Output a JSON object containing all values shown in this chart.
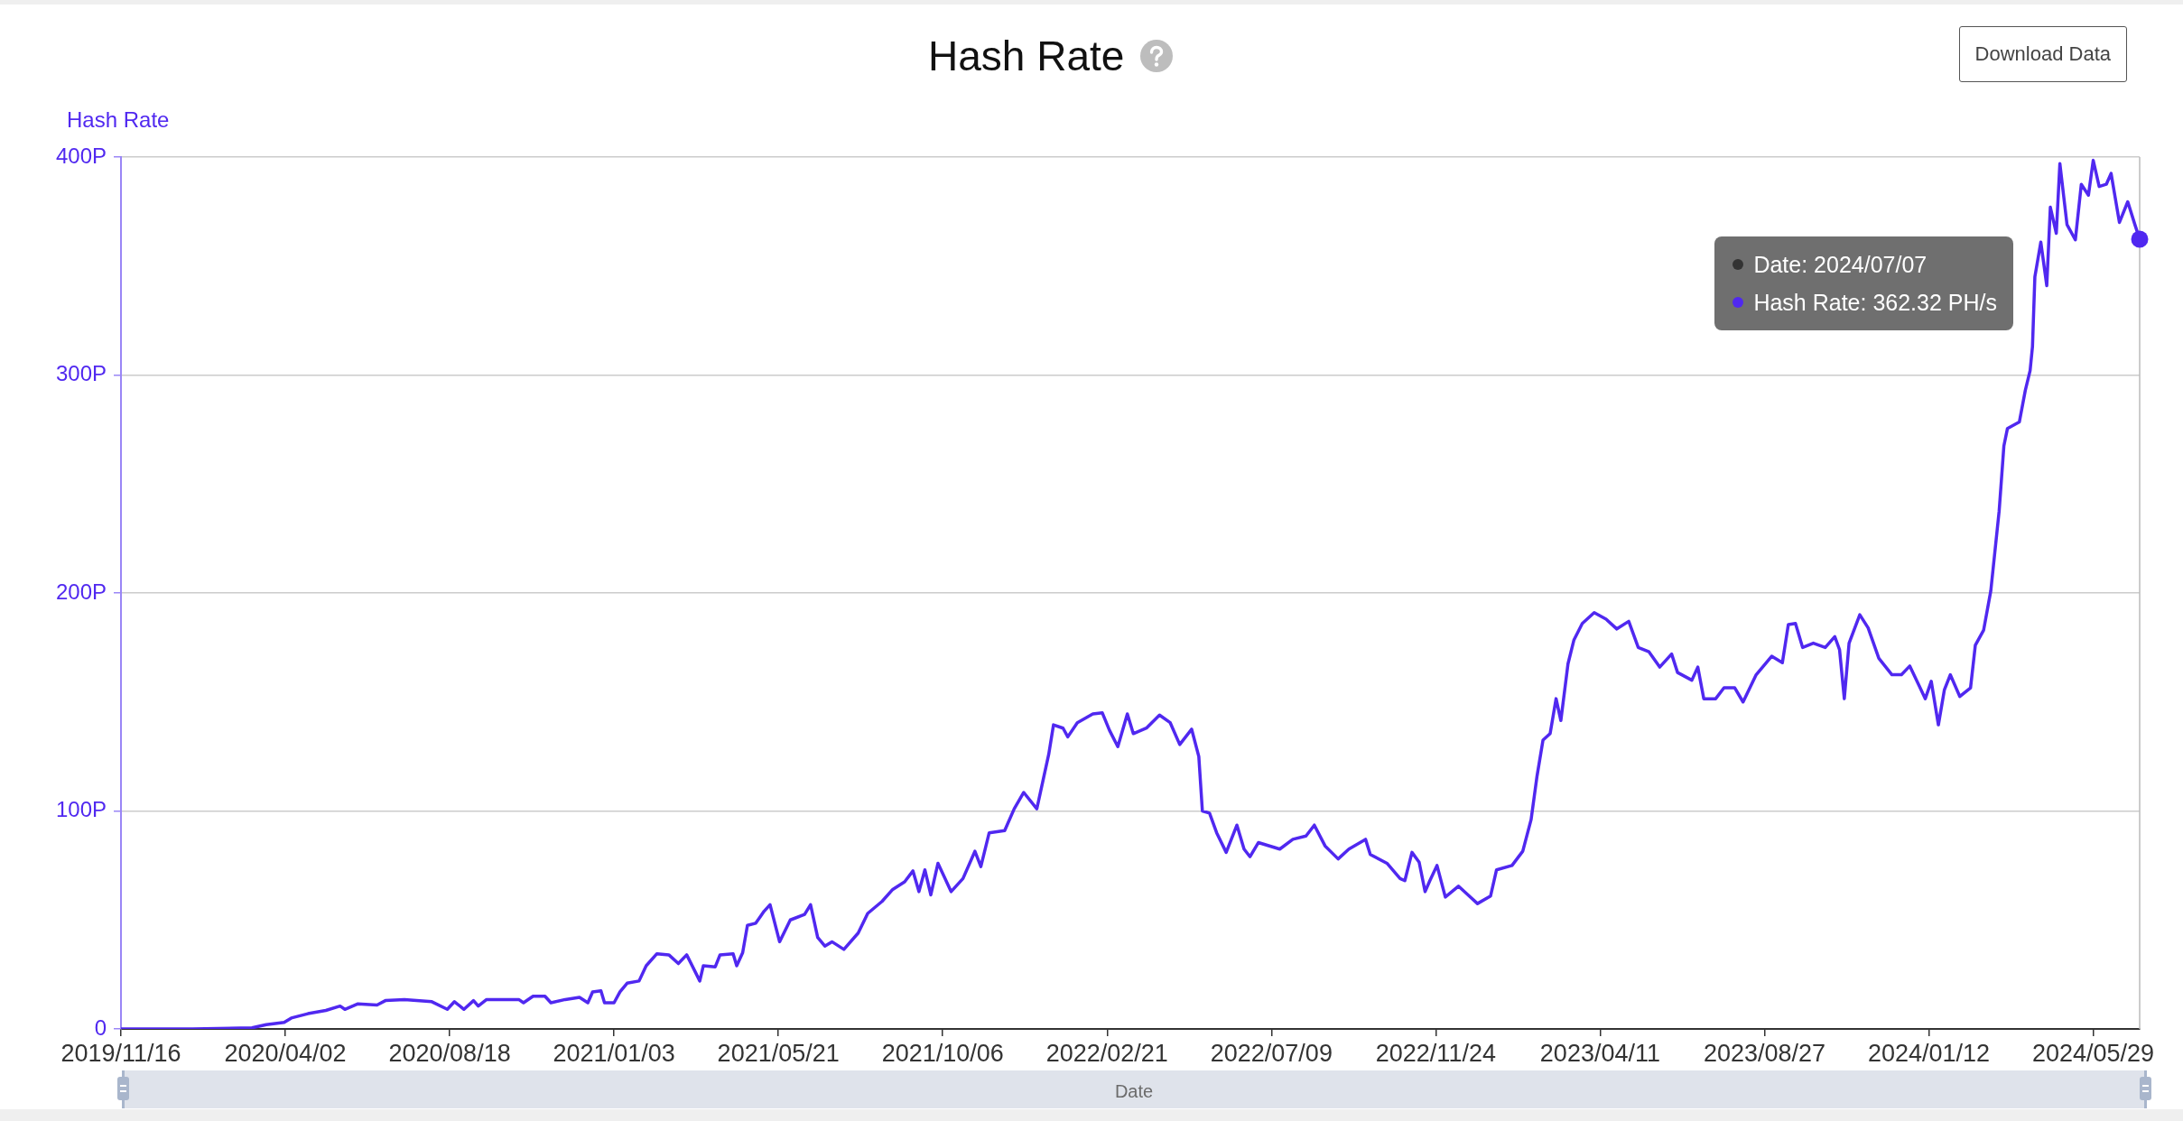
{
  "chart_data": {
    "type": "line",
    "title": "Hash Rate",
    "xlabel": "Date",
    "ylabel": "Hash Rate",
    "color": "#5028f0",
    "marker": "none",
    "grid": "y",
    "xlim": [
      "2019-11-16",
      "2024-07-07"
    ],
    "xticks": [
      {
        "value": "2019-11-16",
        "label": "2019/11/16"
      },
      {
        "value": "2020-04-02",
        "label": "2020/04/02"
      },
      {
        "value": "2020-08-18",
        "label": "2020/08/18"
      },
      {
        "value": "2021-01-03",
        "label": "2021/01/03"
      },
      {
        "value": "2021-05-21",
        "label": "2021/05/21"
      },
      {
        "value": "2021-10-06",
        "label": "2021/10/06"
      },
      {
        "value": "2022-02-21",
        "label": "2022/02/21"
      },
      {
        "value": "2022-07-09",
        "label": "2022/07/09"
      },
      {
        "value": "2022-11-24",
        "label": "2022/11/24"
      },
      {
        "value": "2023-04-11",
        "label": "2023/04/11"
      },
      {
        "value": "2023-08-27",
        "label": "2023/08/27"
      },
      {
        "value": "2024-01-12",
        "label": "2024/01/12"
      },
      {
        "value": "2024-05-29",
        "label": "2024/05/29"
      }
    ],
    "ylim": [
      0,
      400
    ],
    "yticks": [
      0,
      {
        "value": 100,
        "label": "100P"
      },
      {
        "value": 200,
        "label": "200P"
      },
      {
        "value": 300,
        "label": "300P"
      },
      {
        "value": 400,
        "label": "400P"
      }
    ],
    "x": [
      "2019-11-16",
      "2020-01-15",
      "2020-03-05",
      "2020-03-17",
      "2020-04-01",
      "2020-04-07",
      "2020-04-21",
      "2020-05-06",
      "2020-05-18",
      "2020-05-22",
      "2020-06-02",
      "2020-06-18",
      "2020-06-25",
      "2020-07-11",
      "2020-08-03",
      "2020-08-16",
      "2020-08-22",
      "2020-08-30",
      "2020-09-07",
      "2020-09-11",
      "2020-09-18",
      "2020-10-15",
      "2020-10-19",
      "2020-10-27",
      "2020-11-06",
      "2020-11-11",
      "2020-11-23",
      "2020-12-05",
      "2020-12-12",
      "2020-12-16",
      "2020-12-23",
      "2020-12-26",
      "2021-01-03",
      "2021-01-08",
      "2021-01-14",
      "2021-01-24",
      "2021-01-30",
      "2021-02-08",
      "2021-02-18",
      "2021-02-26",
      "2021-03-05",
      "2021-03-16",
      "2021-03-19",
      "2021-03-29",
      "2021-04-02",
      "2021-04-13",
      "2021-04-16",
      "2021-04-21",
      "2021-04-25",
      "2021-05-02",
      "2021-05-09",
      "2021-05-14",
      "2021-05-22",
      "2021-05-31",
      "2021-06-12",
      "2021-06-17",
      "2021-06-23",
      "2021-06-29",
      "2021-07-05",
      "2021-07-15",
      "2021-07-27",
      "2021-08-04",
      "2021-08-16",
      "2021-08-25",
      "2021-09-04",
      "2021-09-11",
      "2021-09-16",
      "2021-09-21",
      "2021-09-26",
      "2021-10-02",
      "2021-10-13",
      "2021-10-23",
      "2021-11-02",
      "2021-11-07",
      "2021-11-14",
      "2021-11-27",
      "2021-12-05",
      "2021-12-13",
      "2021-12-24",
      "2021-12-29",
      "2022-01-03",
      "2022-01-07",
      "2022-01-15",
      "2022-01-19",
      "2022-01-27",
      "2022-02-09",
      "2022-02-17",
      "2022-02-23",
      "2022-03-02",
      "2022-03-10",
      "2022-03-15",
      "2022-03-26",
      "2022-04-06",
      "2022-04-15",
      "2022-04-23",
      "2022-05-03",
      "2022-05-09",
      "2022-05-12",
      "2022-05-18",
      "2022-05-24",
      "2022-06-01",
      "2022-06-10",
      "2022-06-16",
      "2022-06-21",
      "2022-06-28",
      "2022-07-16",
      "2022-07-27",
      "2022-08-07",
      "2022-08-14",
      "2022-08-23",
      "2022-09-03",
      "2022-09-12",
      "2022-09-26",
      "2022-09-30",
      "2022-10-14",
      "2022-10-25",
      "2022-10-29",
      "2022-11-04",
      "2022-11-10",
      "2022-11-15",
      "2022-11-19",
      "2022-11-25",
      "2022-12-02",
      "2022-12-13",
      "2022-12-20",
      "2022-12-29",
      "2023-01-09",
      "2023-01-14",
      "2023-01-27",
      "2023-02-05",
      "2023-02-12",
      "2023-02-17",
      "2023-02-22",
      "2023-02-28",
      "2023-03-05",
      "2023-03-09",
      "2023-03-15",
      "2023-03-20",
      "2023-03-27",
      "2023-04-06",
      "2023-04-16",
      "2023-04-25",
      "2023-05-05",
      "2023-05-13",
      "2023-05-22",
      "2023-05-31",
      "2023-06-10",
      "2023-06-15",
      "2023-06-27",
      "2023-07-02",
      "2023-07-07",
      "2023-07-17",
      "2023-07-24",
      "2023-08-02",
      "2023-08-09",
      "2023-08-20",
      "2023-09-02",
      "2023-09-11",
      "2023-09-16",
      "2023-09-22",
      "2023-09-28",
      "2023-10-07",
      "2023-10-17",
      "2023-10-25",
      "2023-10-29",
      "2023-11-02",
      "2023-11-06",
      "2023-11-15",
      "2023-11-22",
      "2023-12-01",
      "2023-12-12",
      "2023-12-20",
      "2023-12-27",
      "2024-01-09",
      "2024-01-14",
      "2024-01-20",
      "2024-01-25",
      "2024-01-30",
      "2024-02-07",
      "2024-02-16",
      "2024-02-20",
      "2024-02-27",
      "2024-03-04",
      "2024-03-11",
      "2024-03-15",
      "2024-03-18",
      "2024-03-28",
      "2024-04-02",
      "2024-04-06",
      "2024-04-08",
      "2024-04-10",
      "2024-04-15",
      "2024-04-20",
      "2024-04-23",
      "2024-04-28",
      "2024-05-01",
      "2024-05-07",
      "2024-05-14",
      "2024-05-19",
      "2024-05-25",
      "2024-05-29",
      "2024-06-03",
      "2024-06-09",
      "2024-06-13",
      "2024-06-20",
      "2024-06-27",
      "2024-07-03",
      "2024-07-07"
    ],
    "values": [
      0,
      0,
      0.5,
      2,
      3,
      5,
      7,
      8.5,
      10.5,
      9,
      11.5,
      11,
      13,
      13.5,
      12.5,
      9,
      12.5,
      9,
      13,
      10.5,
      13.5,
      13.5,
      12,
      15,
      15,
      12,
      13.5,
      14.5,
      12,
      17,
      17.5,
      12,
      12,
      17,
      21,
      22,
      29,
      34.5,
      34,
      30,
      34,
      22,
      29,
      28.5,
      34,
      34.5,
      29,
      35,
      47.5,
      48.5,
      54,
      57,
      40,
      50,
      52.5,
      57,
      42,
      38,
      40,
      36.5,
      44,
      53,
      58.5,
      64,
      67.5,
      72.5,
      63,
      73,
      61.5,
      76,
      63,
      69,
      81.5,
      74.5,
      90,
      91,
      101,
      108.5,
      101,
      113.5,
      126,
      139.5,
      138,
      134,
      140.5,
      144.5,
      145,
      137,
      129.5,
      144.5,
      135.5,
      138,
      144,
      140.5,
      130.5,
      137.5,
      125,
      100,
      99,
      90,
      81,
      93.5,
      82.5,
      79,
      85.5,
      82.5,
      87,
      88.5,
      93.5,
      84,
      78,
      82.5,
      87,
      80,
      76,
      69,
      68,
      81,
      76.5,
      63,
      68,
      75,
      60.5,
      65.5,
      62,
      57.5,
      61,
      73,
      75,
      81.5,
      96,
      116,
      132.5,
      135.5,
      151.5,
      141.5,
      167.5,
      178.5,
      186,
      191,
      188,
      183.5,
      187,
      175,
      173,
      166,
      172,
      163.5,
      160,
      166,
      151.5,
      151.5,
      156.5,
      156.5,
      150,
      162.5,
      171,
      168,
      185.5,
      186,
      175,
      177,
      175,
      180,
      174,
      151.5,
      177,
      190,
      184,
      170,
      162.5,
      162.5,
      166.5,
      151.5,
      159.5,
      139.5,
      155.5,
      162.5,
      152.5,
      156.5,
      176,
      183,
      201,
      237.5,
      267.5,
      275.5,
      278.5,
      293,
      302,
      313,
      345,
      361,
      341,
      377,
      365,
      397,
      369,
      362,
      387.5,
      382.5,
      398.5,
      386.5,
      387.5,
      392.5,
      370,
      379.5,
      369,
      362.32
    ],
    "annotations": [
      "Download Data",
      "Date: 2024/07/07",
      "Hash Rate: 362.32 PH/s"
    ]
  }
}
